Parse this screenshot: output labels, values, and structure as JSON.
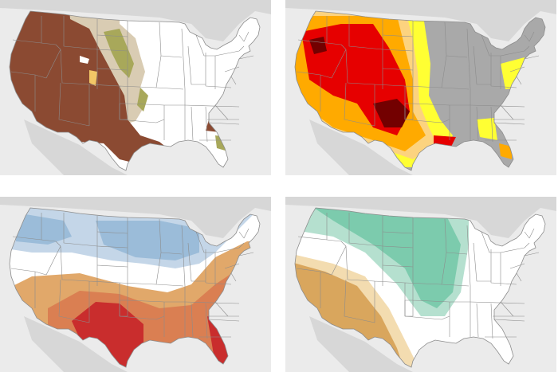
{
  "colors": {
    "background": "#ffffff",
    "land_outside": "#d7d7d7",
    "water": "#ebebeb",
    "state_lines": "#8c8c8c",
    "us_land": "#ffffff"
  },
  "panels": [
    {
      "position": "top-left",
      "legend_classes": [
        {
          "color": "#8b4a32"
        },
        {
          "color": "#d9ccb3"
        },
        {
          "color": "#a8a85a"
        },
        {
          "color": "#f2c766"
        }
      ]
    },
    {
      "position": "top-right",
      "legend_classes": [
        {
          "color": "#a9a9a9"
        },
        {
          "color": "#ffff33"
        },
        {
          "color": "#fcd37f"
        },
        {
          "color": "#ffaa00"
        },
        {
          "color": "#e60000"
        },
        {
          "color": "#730000"
        }
      ]
    },
    {
      "position": "bottom-left",
      "legend_classes": [
        {
          "color": "#c4d6e8"
        },
        {
          "color": "#9bbcd9"
        },
        {
          "color": "#f0d9b0"
        },
        {
          "color": "#e1a86a"
        },
        {
          "color": "#da7f52"
        },
        {
          "color": "#c92d2d"
        }
      ]
    },
    {
      "position": "bottom-right",
      "legend_classes": [
        {
          "color": "#b5e0cf"
        },
        {
          "color": "#7ccbad"
        },
        {
          "color": "#f3dcb0"
        },
        {
          "color": "#d9a65d"
        }
      ]
    }
  ]
}
